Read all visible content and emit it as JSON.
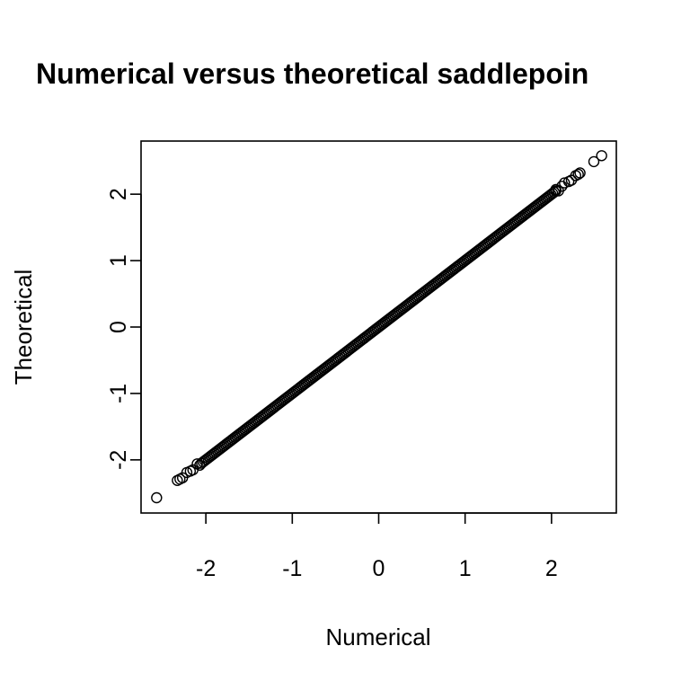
{
  "chart_data": {
    "type": "scatter",
    "title": "Numerical versus theoretical saddlepoin",
    "xlabel": "Numerical",
    "ylabel": "Theoretical",
    "xlim": [
      -2.75,
      2.75
    ],
    "ylim": [
      -2.8,
      2.8
    ],
    "xticks": [
      -2,
      -1,
      0,
      1,
      2
    ],
    "yticks": [
      -2,
      -1,
      0,
      1,
      2
    ],
    "xtick_labels": [
      "-2",
      "-1",
      "0",
      "1",
      "2"
    ],
    "ytick_labels": [
      "-2",
      "-1",
      "0",
      "1",
      "2"
    ],
    "grid": false,
    "legend": "none",
    "marker": "open-circle",
    "colors": {
      "marker": "#000000",
      "frame": "#000000",
      "background": "#ffffff"
    },
    "dense_line": {
      "from": -2.05,
      "to": 2.05,
      "slope": 1,
      "intercept": 0
    },
    "points": [
      {
        "x": -2.57,
        "y": -2.57
      },
      {
        "x": -2.33,
        "y": -2.31
      },
      {
        "x": -2.3,
        "y": -2.29
      },
      {
        "x": -2.27,
        "y": -2.27
      },
      {
        "x": -2.22,
        "y": -2.19
      },
      {
        "x": -2.18,
        "y": -2.17
      },
      {
        "x": -2.15,
        "y": -2.15
      },
      {
        "x": -2.1,
        "y": -2.06
      },
      {
        "x": -2.07,
        "y": -2.08
      },
      {
        "x": 2.05,
        "y": 2.07
      },
      {
        "x": 2.08,
        "y": 2.05
      },
      {
        "x": 2.12,
        "y": 2.12
      },
      {
        "x": 2.15,
        "y": 2.17
      },
      {
        "x": 2.2,
        "y": 2.19
      },
      {
        "x": 2.23,
        "y": 2.21
      },
      {
        "x": 2.28,
        "y": 2.28
      },
      {
        "x": 2.31,
        "y": 2.3
      },
      {
        "x": 2.33,
        "y": 2.32
      },
      {
        "x": 2.49,
        "y": 2.49
      },
      {
        "x": 2.58,
        "y": 2.58
      }
    ]
  }
}
